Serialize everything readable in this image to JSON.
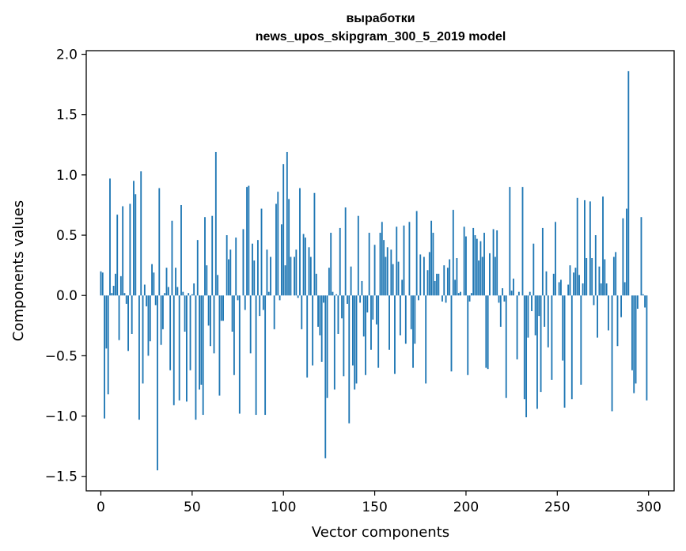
{
  "chart_data": {
    "type": "bar",
    "title": [
      "выработки",
      "news_upos_skipgram_300_5_2019 model"
    ],
    "xlabel": "Vector components",
    "ylabel": "Components values",
    "xlim": [
      -8,
      314
    ],
    "ylim": [
      -1.62,
      2.03
    ],
    "xticks": [
      0,
      50,
      100,
      150,
      200,
      250,
      300
    ],
    "yticks": [
      -1.5,
      -1.0,
      -0.5,
      0.0,
      0.5,
      1.0,
      1.5,
      2.0
    ],
    "ytick_labels": [
      "−1.5",
      "−1.0",
      "−0.5",
      "0.0",
      "0.5",
      "1.0",
      "1.5",
      "2.0"
    ],
    "grid": false,
    "bar_color": "#1f77b4",
    "values": [
      0.2,
      0.19,
      -1.02,
      -0.44,
      -0.82,
      0.97,
      0.02,
      0.08,
      0.18,
      0.67,
      -0.37,
      0.16,
      0.74,
      0.02,
      -0.07,
      -0.46,
      0.76,
      -0.32,
      0.95,
      0.84,
      0.0,
      -1.03,
      1.03,
      -0.73,
      0.09,
      -0.09,
      -0.5,
      -0.38,
      0.26,
      0.19,
      -0.08,
      -1.45,
      0.89,
      -0.41,
      -0.28,
      0.02,
      0.23,
      0.07,
      -0.62,
      0.62,
      -0.91,
      0.23,
      0.07,
      -0.87,
      0.75,
      0.03,
      -0.3,
      -0.88,
      0.02,
      -0.62,
      0.01,
      0.1,
      -1.03,
      0.46,
      -0.78,
      -0.74,
      -0.99,
      0.65,
      0.25,
      -0.25,
      -0.42,
      0.66,
      -0.48,
      1.19,
      0.17,
      -0.83,
      -0.21,
      -0.21,
      0.0,
      0.5,
      0.3,
      0.38,
      -0.3,
      -0.66,
      0.48,
      -0.04,
      -0.98,
      -0.0,
      0.55,
      -0.12,
      0.9,
      0.91,
      -0.48,
      0.43,
      0.29,
      -0.99,
      0.46,
      -0.17,
      0.72,
      -0.12,
      -0.99,
      0.38,
      0.03,
      0.32,
      0.0,
      -0.28,
      0.76,
      0.86,
      -0.04,
      0.59,
      1.09,
      0.25,
      1.19,
      0.8,
      0.32,
      0.0,
      0.32,
      0.38,
      -0.02,
      0.89,
      -0.28,
      0.51,
      0.48,
      -0.68,
      0.4,
      0.32,
      -0.58,
      0.85,
      0.18,
      -0.26,
      -0.33,
      -0.55,
      -0.06,
      -1.35,
      -0.85,
      0.23,
      0.52,
      0.03,
      -0.78,
      0.01,
      -0.32,
      0.56,
      -0.19,
      -0.67,
      0.73,
      -0.07,
      -1.06,
      0.24,
      -0.58,
      -0.78,
      -0.73,
      0.66,
      -0.06,
      0.12,
      -0.34,
      -0.66,
      -0.14,
      0.52,
      -0.45,
      -0.2,
      0.42,
      -0.24,
      -0.6,
      0.52,
      0.61,
      0.46,
      0.32,
      0.4,
      -0.45,
      0.38,
      0.26,
      -0.65,
      0.57,
      0.28,
      -0.33,
      0.13,
      0.58,
      -0.4,
      0.0,
      0.61,
      -0.28,
      -0.6,
      -0.4,
      0.7,
      -0.04,
      0.34,
      0.0,
      0.32,
      -0.73,
      0.21,
      0.36,
      0.62,
      0.52,
      0.12,
      0.18,
      0.18,
      0.0,
      -0.05,
      0.25,
      -0.06,
      0.23,
      0.3,
      -0.63,
      0.71,
      0.13,
      0.31,
      0.02,
      0.03,
      0.0,
      0.57,
      0.49,
      -0.66,
      -0.05,
      0.02,
      0.56,
      0.5,
      0.47,
      0.29,
      0.45,
      0.32,
      0.52,
      -0.6,
      -0.61,
      0.35,
      0.0,
      0.55,
      0.32,
      0.54,
      -0.06,
      -0.26,
      0.06,
      -0.05,
      -0.85,
      0.0,
      0.9,
      0.04,
      0.14,
      0.0,
      -0.53,
      0.03,
      0.0,
      0.9,
      -0.86,
      -1.01,
      -0.35,
      0.03,
      -0.13,
      0.43,
      -0.33,
      -0.94,
      -0.17,
      -0.8,
      0.56,
      -0.26,
      0.2,
      -0.43,
      0.0,
      -0.7,
      0.18,
      0.61,
      0.0,
      0.11,
      0.13,
      -0.54,
      -0.93,
      0.0,
      0.09,
      0.25,
      -0.86,
      0.19,
      0.23,
      0.81,
      0.17,
      -0.74,
      0.1,
      0.79,
      0.31,
      0.0,
      0.78,
      0.31,
      -0.08,
      0.5,
      -0.35,
      0.24,
      0.1,
      0.82,
      0.3,
      0.1,
      -0.29,
      0.0,
      -0.96,
      0.32,
      0.36,
      -0.42,
      0.0,
      -0.18,
      0.64,
      0.11,
      0.72,
      1.86,
      0.0,
      -0.62,
      -0.81,
      -0.73,
      -0.11,
      0.0,
      0.65,
      0.01,
      -0.1,
      -0.87
    ]
  }
}
